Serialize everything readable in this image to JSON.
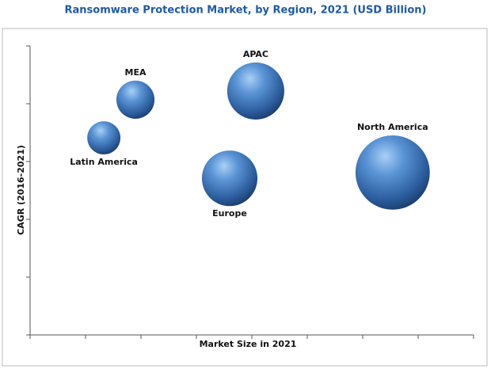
{
  "chart_data": {
    "type": "bubble",
    "title": "Ransomware Protection Market, by Region, 2021 (USD Billion)",
    "x_label": "Market Size in 2021",
    "y_label": "CAGR (2016-2021)",
    "color": "#3a74b8",
    "xlim": [
      0,
      8
    ],
    "xticks": [
      0,
      1,
      2,
      3,
      4,
      5,
      6,
      7,
      8
    ],
    "ylim": [
      0,
      5
    ],
    "yticks": [
      0,
      1,
      2,
      3,
      4,
      5
    ],
    "points": [
      {
        "label": "Latin America",
        "x": 1.33,
        "y": 3.41,
        "size": 4.4
      },
      {
        "label": "MEA",
        "x": 1.9,
        "y": 4.07,
        "size": 5.8
      },
      {
        "label": "APAC",
        "x": 4.07,
        "y": 4.22,
        "size": 13
      },
      {
        "label": "Europe",
        "x": 3.6,
        "y": 2.71,
        "size": 12.3
      },
      {
        "label": "North America",
        "x": 6.54,
        "y": 2.81,
        "size": 22
      }
    ]
  }
}
